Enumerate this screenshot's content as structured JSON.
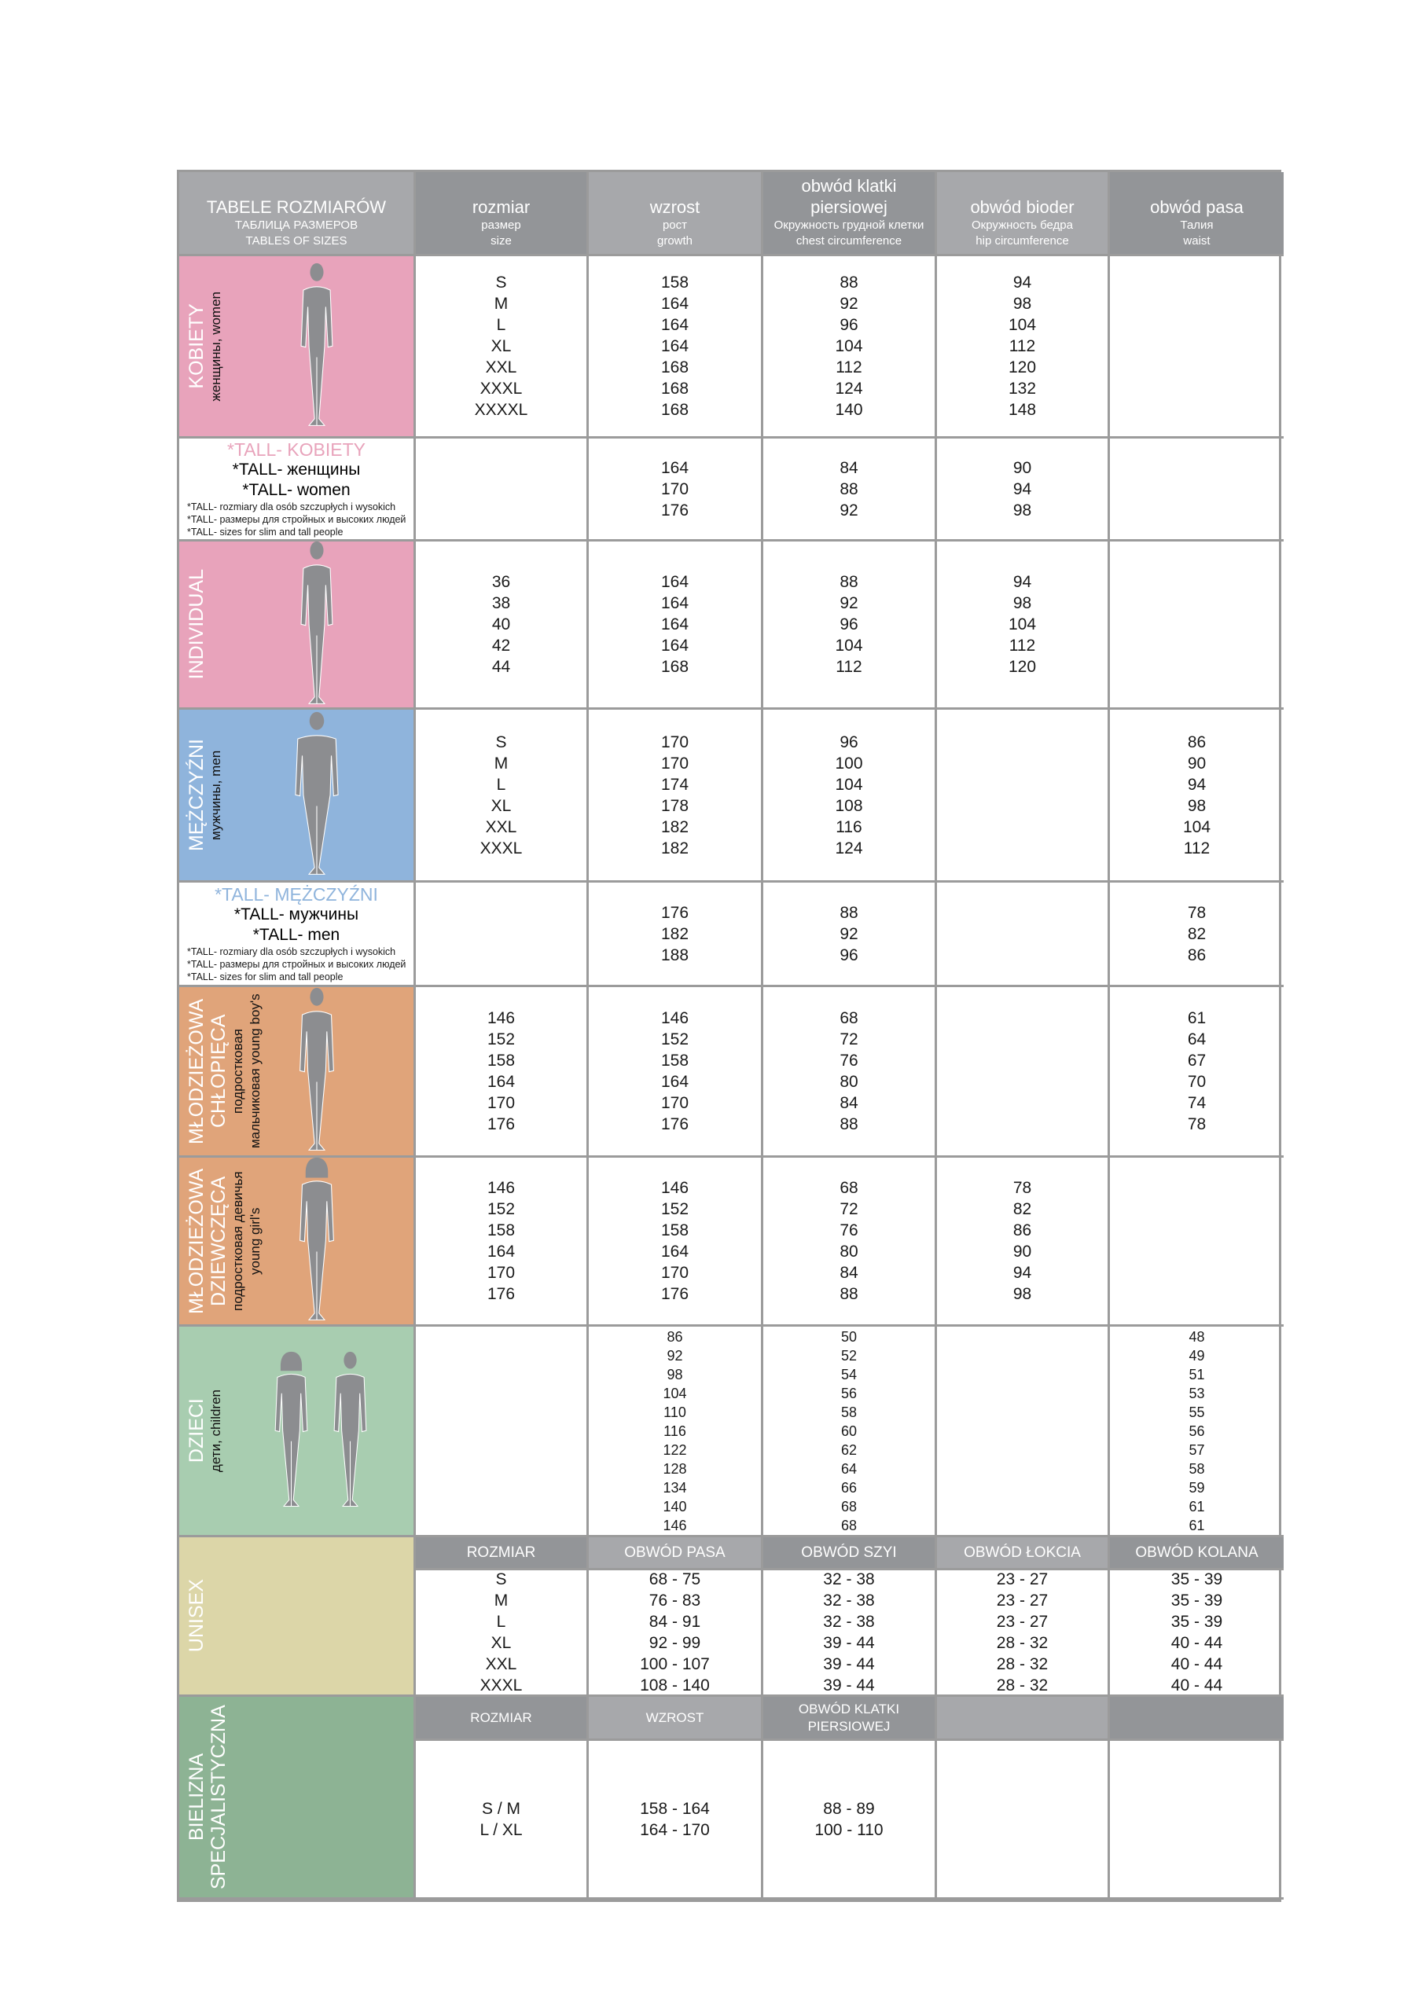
{
  "header": {
    "title": [
      "TABELE ROZMIARÓW",
      "ТАБЛИЦА РАЗМЕРОВ",
      "TABLES OF SIZES"
    ],
    "columns": [
      {
        "pl": "rozmiar",
        "ru": "размер",
        "en": "size"
      },
      {
        "pl": "wzrost",
        "ru": "рост",
        "en": "growth"
      },
      {
        "pl": "obwód klatki piersiowej",
        "ru": "Окружность грудной клетки",
        "en": "chest circumference"
      },
      {
        "pl": "obwód bioder",
        "ru": "Окружность бедра",
        "en": "hip circumference"
      },
      {
        "pl": "obwód pasa",
        "ru": "Талия",
        "en": "waist"
      }
    ]
  },
  "colors": {
    "header_light": "#a7a8ab",
    "header_dark": "#939598",
    "border": "#9b9b9b"
  },
  "sections": [
    {
      "type": "figure",
      "label": "KOBIETY",
      "sublabel": "женщины, women",
      "color": "#e8a3bb",
      "figure": "woman-silhouette",
      "columns": [
        [
          "S",
          "M",
          "L",
          "XL",
          "XXL",
          "XXXL",
          "XXXXL"
        ],
        [
          "158",
          "164",
          "164",
          "164",
          "168",
          "168",
          "168"
        ],
        [
          "88",
          "92",
          "96",
          "104",
          "112",
          "124",
          "140"
        ],
        [
          "94",
          "98",
          "104",
          "112",
          "120",
          "132",
          "148"
        ],
        []
      ]
    },
    {
      "type": "tall",
      "title": "*TALL- KOBIETY",
      "title_color": "#e8a3bb",
      "ru": "*TALL- женщины",
      "en": "*TALL- women",
      "notes": [
        "*TALL- rozmiary dla osób szczupłych i wysokich",
        "*TALL- размеры для стройных и высоких людей",
        "*TALL- sizes for slim and tall people"
      ],
      "columns": [
        [],
        [
          "164",
          "170",
          "176"
        ],
        [
          "84",
          "88",
          "92"
        ],
        [
          "90",
          "94",
          "98"
        ],
        []
      ]
    },
    {
      "type": "figure",
      "label": "INDIVIDUAL",
      "sublabel": "",
      "color": "#e8a3bb",
      "figure": "woman-silhouette",
      "columns": [
        [
          "36",
          "38",
          "40",
          "42",
          "44"
        ],
        [
          "164",
          "164",
          "164",
          "164",
          "168"
        ],
        [
          "88",
          "92",
          "96",
          "104",
          "112"
        ],
        [
          "94",
          "98",
          "104",
          "112",
          "120"
        ],
        []
      ]
    },
    {
      "type": "figure",
      "label": "MĘŻCZYŹNI",
      "sublabel": "мужчины, men",
      "color": "#8fb4dc",
      "figure": "man-silhouette",
      "columns": [
        [
          "S",
          "M",
          "L",
          "XL",
          "XXL",
          "XXXL"
        ],
        [
          "170",
          "170",
          "174",
          "178",
          "182",
          "182"
        ],
        [
          "96",
          "100",
          "104",
          "108",
          "116",
          "124"
        ],
        [],
        [
          "86",
          "90",
          "94",
          "98",
          "104",
          "112"
        ]
      ]
    },
    {
      "type": "tall",
      "title": "*TALL- MĘŻCZYŹNI",
      "title_color": "#8fb4dc",
      "ru": "*TALL- мужчины",
      "en": "*TALL- men",
      "notes": [
        "*TALL- rozmiary dla osób szczupłych i wysokich",
        "*TALL- размеры для стройных и высоких людей",
        "*TALL- sizes for slim and tall people"
      ],
      "columns": [
        [],
        [
          "176",
          "182",
          "188"
        ],
        [
          "88",
          "92",
          "96"
        ],
        [],
        [
          "78",
          "82",
          "86"
        ]
      ]
    },
    {
      "type": "figure",
      "label": "MŁODZIEŻOWA CHŁOPIĘCA",
      "sublabel": "подростковая мальчиковая young boy's",
      "color": "#e0a47a",
      "figure": "boy-silhouette",
      "columns": [
        [
          "146",
          "152",
          "158",
          "164",
          "170",
          "176"
        ],
        [
          "146",
          "152",
          "158",
          "164",
          "170",
          "176"
        ],
        [
          "68",
          "72",
          "76",
          "80",
          "84",
          "88"
        ],
        [],
        [
          "61",
          "64",
          "67",
          "70",
          "74",
          "78"
        ]
      ]
    },
    {
      "type": "figure",
      "label": "MŁODZIEŻOWA DZIEWCZĘCA",
      "sublabel": "подростковая девичья young girl's",
      "color": "#e0a47a",
      "figure": "girl-silhouette",
      "columns": [
        [
          "146",
          "152",
          "158",
          "164",
          "170",
          "176"
        ],
        [
          "146",
          "152",
          "158",
          "164",
          "170",
          "176"
        ],
        [
          "68",
          "72",
          "76",
          "80",
          "84",
          "88"
        ],
        [
          "78",
          "82",
          "86",
          "90",
          "94",
          "98"
        ],
        []
      ]
    },
    {
      "type": "figure",
      "label": "DZIECI",
      "sublabel": "дети, children",
      "color": "#a8cdb0",
      "figure": "children-silhouettes",
      "small": true,
      "columns": [
        [],
        [
          "86",
          "92",
          "98",
          "104",
          "110",
          "116",
          "122",
          "128",
          "134",
          "140",
          "146"
        ],
        [
          "50",
          "52",
          "54",
          "56",
          "58",
          "60",
          "62",
          "64",
          "66",
          "68",
          "68"
        ],
        [],
        [
          "48",
          "49",
          "51",
          "53",
          "55",
          "56",
          "57",
          "58",
          "59",
          "61",
          "61"
        ]
      ]
    },
    {
      "type": "sub",
      "label": "UNISEX",
      "color": "#dcd6a8",
      "subheaders": [
        "ROZMIAR",
        "OBWÓD PASA",
        "OBWÓD SZYI",
        "OBWÓD ŁOKCIA",
        "OBWÓD KOLANA"
      ],
      "columns": [
        [
          "S",
          "M",
          "L",
          "XL",
          "XXL",
          "XXXL"
        ],
        [
          "68 - 75",
          "76 - 83",
          "84 - 91",
          "92 - 99",
          "100 - 107",
          "108 - 140"
        ],
        [
          "32 - 38",
          "32 - 38",
          "32 - 38",
          "39 - 44",
          "39 - 44",
          "39 - 44"
        ],
        [
          "23 - 27",
          "23 - 27",
          "23 - 27",
          "28 - 32",
          "28 - 32",
          "28 - 32"
        ],
        [
          "35 - 39",
          "35 - 39",
          "35 - 39",
          "40 - 44",
          "40 - 44",
          "40 - 44"
        ]
      ]
    },
    {
      "type": "sub",
      "label": "BIELIZNA SPECJALISTYCZNA",
      "color": "#8db394",
      "big": true,
      "subheaders": [
        "ROZMIAR",
        "WZROST",
        "OBWÓD KLATKI PIERSIOWEJ",
        "",
        ""
      ],
      "columns": [
        [
          "S / M",
          "L / XL"
        ],
        [
          "158 - 164",
          "164 - 170"
        ],
        [
          "88 - 89",
          "100 - 110"
        ],
        [],
        []
      ]
    }
  ]
}
